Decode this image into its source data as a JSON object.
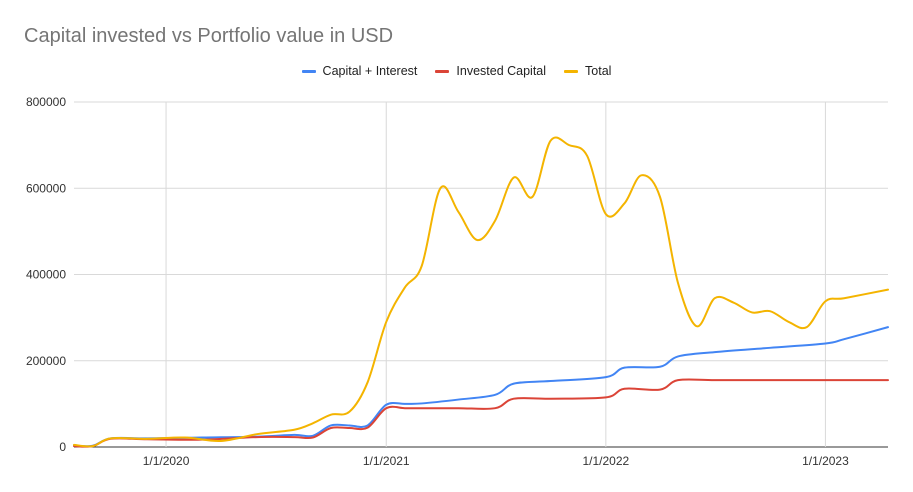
{
  "chart_data": {
    "type": "line",
    "title": "Capital invested vs Portfolio value in USD",
    "xlabel": "",
    "ylabel": "",
    "x_ticks": [
      "1/1/2020",
      "1/1/2021",
      "1/1/2022",
      "1/1/2023"
    ],
    "y_ticks": [
      "0",
      "200000",
      "400000",
      "600000",
      "800000"
    ],
    "ylim": [
      0,
      800000
    ],
    "xlim": [
      "2019-08-01",
      "2023-04-15"
    ],
    "grid": true,
    "legend_position": "top-center",
    "series": [
      {
        "name": "Capital + Interest",
        "color": "#4285f4",
        "points": [
          [
            "2019-08-01",
            3000
          ],
          [
            "2019-09-01",
            3000
          ],
          [
            "2019-10-01",
            20000
          ],
          [
            "2019-12-01",
            20000
          ],
          [
            "2020-03-01",
            22000
          ],
          [
            "2020-06-01",
            24000
          ],
          [
            "2020-08-01",
            28000
          ],
          [
            "2020-09-01",
            26000
          ],
          [
            "2020-10-01",
            50000
          ],
          [
            "2020-11-01",
            50000
          ],
          [
            "2020-12-01",
            50000
          ],
          [
            "2021-01-01",
            98000
          ],
          [
            "2021-02-01",
            100000
          ],
          [
            "2021-03-01",
            101000
          ],
          [
            "2021-05-01",
            110000
          ],
          [
            "2021-07-01",
            121000
          ],
          [
            "2021-08-01",
            147000
          ],
          [
            "2021-10-01",
            153000
          ],
          [
            "2022-01-01",
            162000
          ],
          [
            "2022-02-01",
            184000
          ],
          [
            "2022-04-01",
            186000
          ],
          [
            "2022-05-01",
            210000
          ],
          [
            "2022-07-01",
            220000
          ],
          [
            "2022-10-01",
            230000
          ],
          [
            "2023-01-01",
            240000
          ],
          [
            "2023-02-01",
            250000
          ],
          [
            "2023-04-15",
            278000
          ]
        ]
      },
      {
        "name": "Invested Capital",
        "color": "#db4437",
        "points": [
          [
            "2019-08-01",
            2000
          ],
          [
            "2019-09-01",
            2000
          ],
          [
            "2019-10-01",
            19000
          ],
          [
            "2019-12-01",
            18000
          ],
          [
            "2020-03-01",
            17000
          ],
          [
            "2020-06-01",
            23000
          ],
          [
            "2020-08-01",
            23000
          ],
          [
            "2020-09-01",
            22000
          ],
          [
            "2020-10-01",
            44000
          ],
          [
            "2020-11-01",
            44000
          ],
          [
            "2020-12-01",
            45000
          ],
          [
            "2021-01-01",
            90000
          ],
          [
            "2021-02-01",
            90000
          ],
          [
            "2021-03-01",
            90000
          ],
          [
            "2021-05-01",
            90000
          ],
          [
            "2021-07-01",
            90000
          ],
          [
            "2021-08-01",
            112000
          ],
          [
            "2021-10-01",
            112000
          ],
          [
            "2022-01-01",
            115000
          ],
          [
            "2022-02-01",
            135000
          ],
          [
            "2022-04-01",
            133000
          ],
          [
            "2022-05-01",
            155000
          ],
          [
            "2022-07-01",
            155000
          ],
          [
            "2022-10-01",
            155000
          ],
          [
            "2023-01-01",
            155000
          ],
          [
            "2023-02-01",
            155000
          ],
          [
            "2023-04-15",
            155000
          ]
        ]
      },
      {
        "name": "Total",
        "color": "#f4b400",
        "points": [
          [
            "2019-08-01",
            5000
          ],
          [
            "2019-09-01",
            2000
          ],
          [
            "2019-10-01",
            20000
          ],
          [
            "2019-12-01",
            19000
          ],
          [
            "2020-02-01",
            22000
          ],
          [
            "2020-04-01",
            14000
          ],
          [
            "2020-06-01",
            30000
          ],
          [
            "2020-08-01",
            40000
          ],
          [
            "2020-09-01",
            55000
          ],
          [
            "2020-10-01",
            75000
          ],
          [
            "2020-11-01",
            82000
          ],
          [
            "2020-12-01",
            150000
          ],
          [
            "2021-01-01",
            290000
          ],
          [
            "2021-02-01",
            370000
          ],
          [
            "2021-03-01",
            420000
          ],
          [
            "2021-04-01",
            600000
          ],
          [
            "2021-05-01",
            545000
          ],
          [
            "2021-06-01",
            480000
          ],
          [
            "2021-07-01",
            525000
          ],
          [
            "2021-08-01",
            625000
          ],
          [
            "2021-09-01",
            580000
          ],
          [
            "2021-10-01",
            710000
          ],
          [
            "2021-11-01",
            700000
          ],
          [
            "2021-12-01",
            675000
          ],
          [
            "2022-01-01",
            540000
          ],
          [
            "2022-02-01",
            565000
          ],
          [
            "2022-03-01",
            630000
          ],
          [
            "2022-04-01",
            580000
          ],
          [
            "2022-05-01",
            380000
          ],
          [
            "2022-06-01",
            280000
          ],
          [
            "2022-07-01",
            345000
          ],
          [
            "2022-08-01",
            335000
          ],
          [
            "2022-09-01",
            312000
          ],
          [
            "2022-10-01",
            315000
          ],
          [
            "2022-11-01",
            290000
          ],
          [
            "2022-12-01",
            278000
          ],
          [
            "2023-01-01",
            338000
          ],
          [
            "2023-02-01",
            345000
          ],
          [
            "2023-04-15",
            365000
          ]
        ]
      }
    ]
  }
}
